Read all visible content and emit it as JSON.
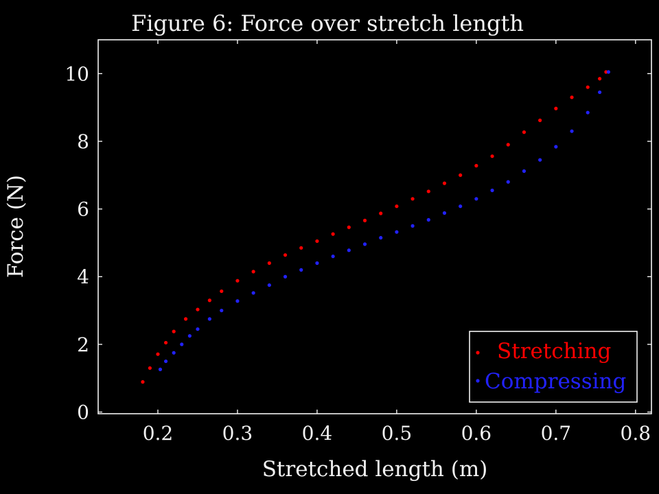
{
  "chart_data": {
    "type": "scatter",
    "title": "Figure 6: Force over stretch length",
    "xlabel": "Stretched length (m)",
    "ylabel": "Force (N)",
    "xlim": [
      0.125,
      0.82
    ],
    "ylim": [
      -0.05,
      11
    ],
    "x_ticks": [
      0.2,
      0.3,
      0.4,
      0.5,
      0.6,
      0.7,
      0.8
    ],
    "x_tick_labels": [
      "0.2",
      "0.3",
      "0.4",
      "0.5",
      "0.6",
      "0.7",
      "0.8"
    ],
    "y_ticks": [
      0,
      2,
      4,
      6,
      8,
      10
    ],
    "y_tick_labels": [
      "0",
      "2",
      "4",
      "6",
      "8",
      "10"
    ],
    "grid": false,
    "legend_position": "bottom-right",
    "series": [
      {
        "name": "Stretching",
        "color": "#ff0000",
        "points": [
          [
            0.181,
            0.89
          ],
          [
            0.19,
            1.3
          ],
          [
            0.2,
            1.71
          ],
          [
            0.21,
            2.05
          ],
          [
            0.22,
            2.38
          ],
          [
            0.235,
            2.75
          ],
          [
            0.25,
            3.03
          ],
          [
            0.265,
            3.3
          ],
          [
            0.28,
            3.57
          ],
          [
            0.3,
            3.88
          ],
          [
            0.32,
            4.15
          ],
          [
            0.34,
            4.4
          ],
          [
            0.36,
            4.64
          ],
          [
            0.38,
            4.85
          ],
          [
            0.4,
            5.05
          ],
          [
            0.42,
            5.26
          ],
          [
            0.44,
            5.46
          ],
          [
            0.46,
            5.66
          ],
          [
            0.48,
            5.87
          ],
          [
            0.5,
            6.08
          ],
          [
            0.52,
            6.3
          ],
          [
            0.54,
            6.52
          ],
          [
            0.56,
            6.76
          ],
          [
            0.58,
            7.0
          ],
          [
            0.6,
            7.28
          ],
          [
            0.62,
            7.56
          ],
          [
            0.64,
            7.9
          ],
          [
            0.66,
            8.27
          ],
          [
            0.68,
            8.62
          ],
          [
            0.7,
            8.97
          ],
          [
            0.72,
            9.3
          ],
          [
            0.74,
            9.6
          ],
          [
            0.755,
            9.85
          ],
          [
            0.763,
            10.05
          ]
        ]
      },
      {
        "name": "Compressing",
        "color": "#2222ff",
        "points": [
          [
            0.766,
            10.05
          ],
          [
            0.755,
            9.45
          ],
          [
            0.74,
            8.85
          ],
          [
            0.72,
            8.3
          ],
          [
            0.7,
            7.84
          ],
          [
            0.68,
            7.45
          ],
          [
            0.66,
            7.12
          ],
          [
            0.64,
            6.8
          ],
          [
            0.62,
            6.55
          ],
          [
            0.6,
            6.3
          ],
          [
            0.58,
            6.08
          ],
          [
            0.56,
            5.88
          ],
          [
            0.54,
            5.68
          ],
          [
            0.52,
            5.5
          ],
          [
            0.5,
            5.32
          ],
          [
            0.48,
            5.15
          ],
          [
            0.46,
            4.96
          ],
          [
            0.44,
            4.78
          ],
          [
            0.42,
            4.6
          ],
          [
            0.4,
            4.4
          ],
          [
            0.38,
            4.2
          ],
          [
            0.36,
            4.0
          ],
          [
            0.34,
            3.75
          ],
          [
            0.32,
            3.52
          ],
          [
            0.3,
            3.28
          ],
          [
            0.28,
            3.0
          ],
          [
            0.265,
            2.75
          ],
          [
            0.25,
            2.45
          ],
          [
            0.24,
            2.25
          ],
          [
            0.23,
            2.0
          ],
          [
            0.22,
            1.75
          ],
          [
            0.21,
            1.5
          ],
          [
            0.203,
            1.26
          ]
        ]
      }
    ]
  }
}
